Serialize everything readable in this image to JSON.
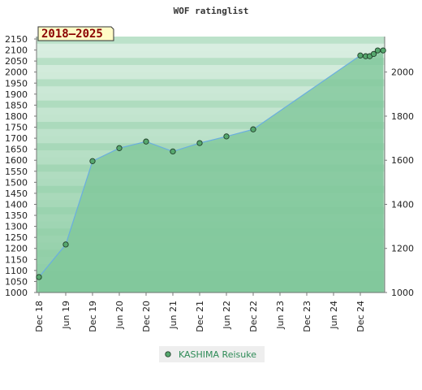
{
  "chart_data": {
    "type": "area",
    "title": "WOF ratinglist",
    "period_label": "2018–2025",
    "colors": {
      "area_fill": "#7fc79a",
      "band_dark": "#8fcea6",
      "band_light": "#e9f5ed",
      "line": "#6aaee0",
      "marker": "#56a86e",
      "range_box": "#fefbc6"
    },
    "ylim": [
      1000,
      2150
    ],
    "left_ticks": [
      "1000",
      "1050",
      "1100",
      "1150",
      "1200",
      "1250",
      "1300",
      "1350",
      "1400",
      "1450",
      "1500",
      "1550",
      "1600",
      "1650",
      "1700",
      "1750",
      "1800",
      "1850",
      "1900",
      "1950",
      "2000",
      "2050",
      "2100",
      "2150"
    ],
    "right_ticks": [
      "1000",
      "1200",
      "1400",
      "1600",
      "1800",
      "2000"
    ],
    "categories": [
      "Dec 18",
      "Jun 19",
      "Dec 19",
      "Jun 20",
      "Dec 20",
      "Jun 21",
      "Dec 21",
      "Jun 22",
      "Dec 22",
      "Jun 23",
      "Dec 23",
      "Jun 24",
      "Dec 24"
    ],
    "series": [
      {
        "name": "KASHIMA Reisuke",
        "x": [
          0,
          1,
          2,
          3,
          4,
          5,
          6,
          7,
          8,
          12,
          12.2,
          12.35,
          12.5,
          12.65,
          12.85
        ],
        "values": [
          1070,
          1218,
          1596,
          1655,
          1685,
          1640,
          1678,
          1708,
          1740,
          2075,
          2072,
          2072,
          2082,
          2098,
          2098
        ]
      }
    ],
    "grid": true,
    "legend_position": "bottom"
  }
}
